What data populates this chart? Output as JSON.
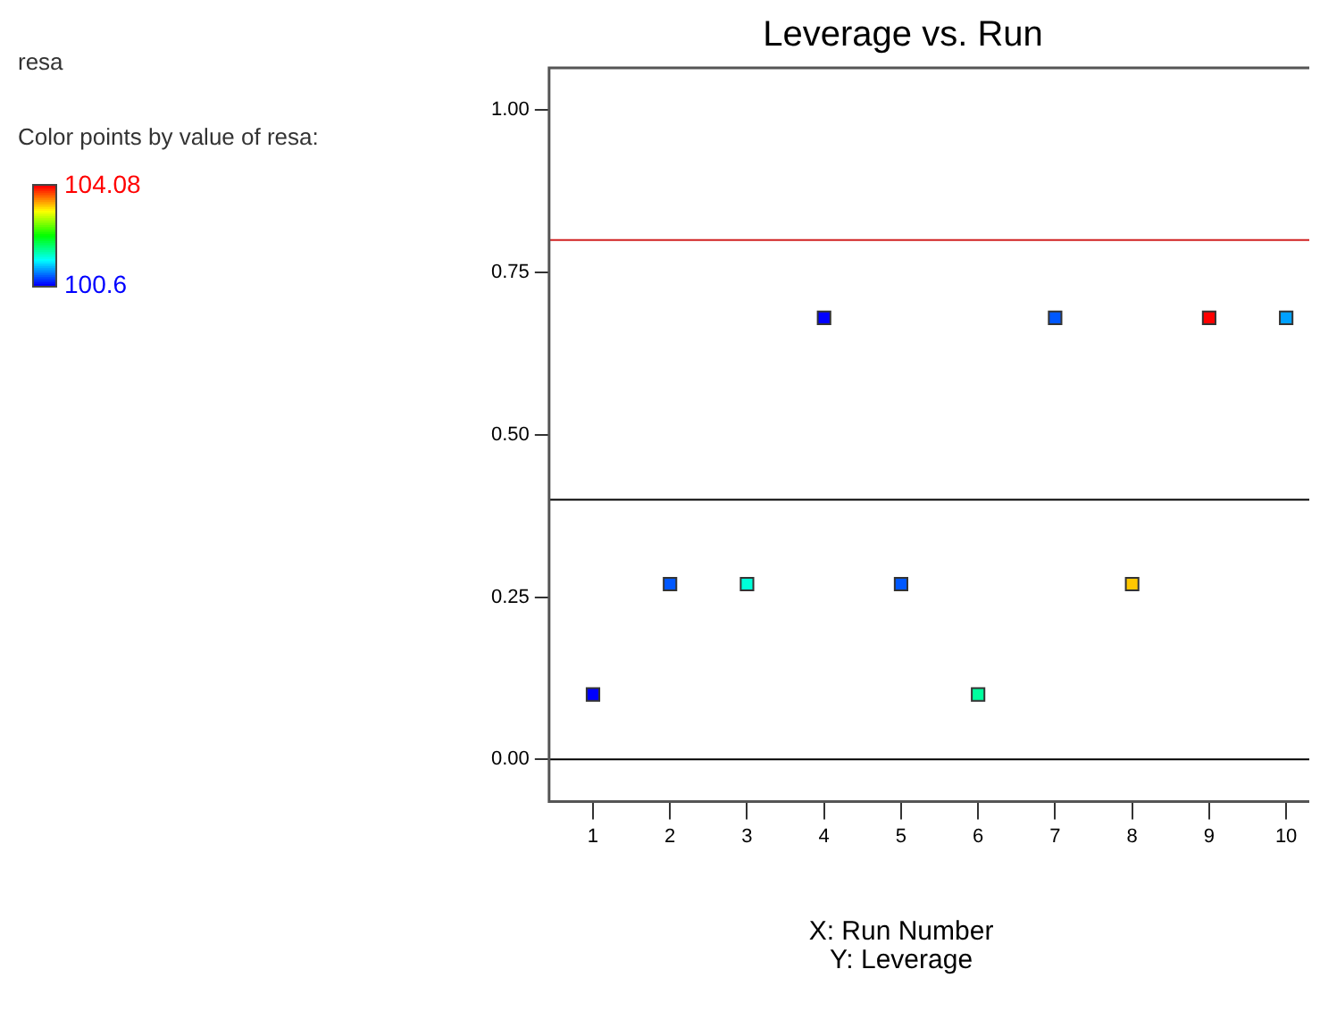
{
  "chart_data": {
    "type": "scatter",
    "title": "Leverage vs. Run",
    "xlabel": "X: Run Number",
    "clabel": "Color points by value of resa:",
    "annotations": [
      "resa",
      "Y: Leverage"
    ],
    "x": [
      1,
      2,
      3,
      4,
      5,
      6,
      7,
      8,
      9,
      10
    ],
    "values": [
      0.1,
      0.27,
      0.27,
      0.68,
      0.27,
      0.1,
      0.68,
      0.27,
      0.68,
      0.68
    ],
    "cvalues": [
      100.6,
      100.9,
      101.6,
      100.6,
      100.9,
      101.8,
      100.9,
      103.4,
      104.08,
      101.15
    ],
    "clim": [
      100.6,
      104.08
    ],
    "cticks": [
      104.08,
      100.6
    ],
    "xlim": [
      0.43,
      10.3
    ],
    "xticks": [
      1,
      2,
      3,
      4,
      5,
      6,
      7,
      8,
      9,
      10
    ],
    "ylim": [
      -0.065,
      1.065
    ],
    "yticks": [
      {
        "value": 0,
        "label": "0.00"
      },
      {
        "value": 0.25,
        "label": "0.25"
      },
      {
        "value": 0.5,
        "label": "0.50"
      },
      {
        "value": 0.75,
        "label": "0.75"
      },
      {
        "value": 1,
        "label": "1.00"
      }
    ],
    "ref_lines": [
      {
        "axis": "y",
        "value": 0.8,
        "color": "#d02020"
      },
      {
        "axis": "y",
        "value": 0.4,
        "color": "#000000"
      },
      {
        "axis": "y",
        "value": 0,
        "color": "#000000"
      }
    ],
    "marker": "square",
    "grid": false,
    "legend": false
  }
}
